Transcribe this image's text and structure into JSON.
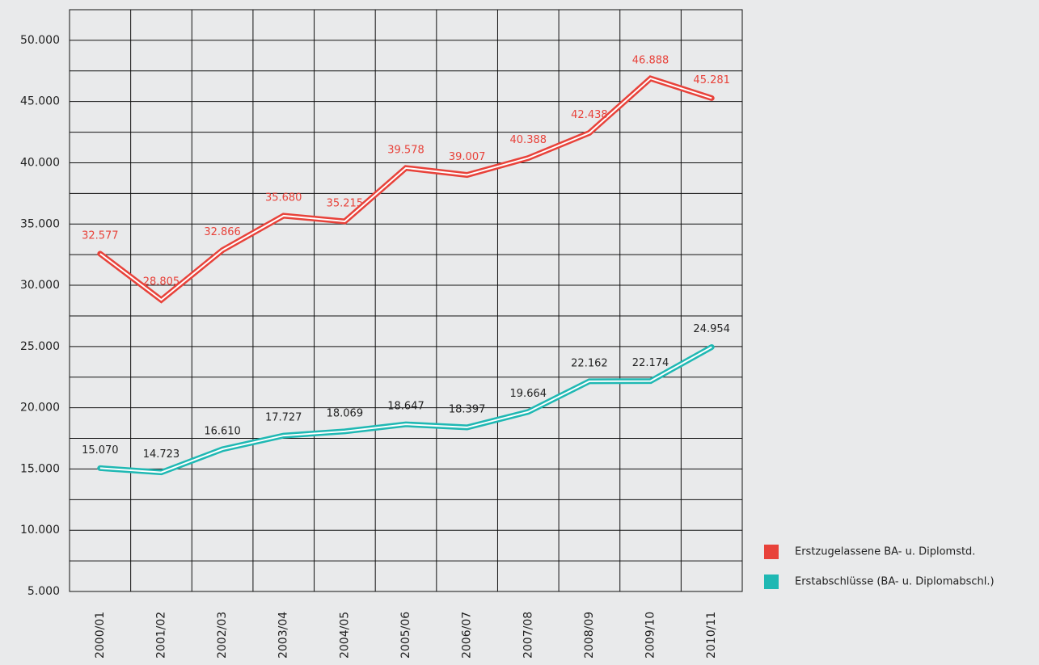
{
  "chart_data": {
    "type": "line",
    "categories": [
      "2000/01",
      "2001/02",
      "2002/03",
      "2003/04",
      "2004/05",
      "2005/06",
      "2006/07",
      "2007/08",
      "2008/09",
      "2009/10",
      "2010/11"
    ],
    "series": [
      {
        "name": "Erstzugelassene BA- u. Diplomstd.",
        "color": "#e8423a",
        "label_color": "#e8423a",
        "values": [
          32577,
          28805,
          32866,
          35680,
          35215,
          39578,
          39007,
          40388,
          42438,
          46888,
          45281
        ],
        "value_labels": [
          "32.577",
          "28.805",
          "32.866",
          "35.680",
          "35.215",
          "39.578",
          "39.007",
          "40.388",
          "42.438",
          "46.888",
          "45.281"
        ]
      },
      {
        "name": "Erstabschlüsse (BA- u. Diplomabschl.)",
        "color": "#1fb8b3",
        "label_color": "#222222",
        "values": [
          15070,
          14723,
          16610,
          17727,
          18069,
          18647,
          18397,
          19664,
          22162,
          22174,
          24954
        ],
        "value_labels": [
          "15.070",
          "14.723",
          "16.610",
          "17.727",
          "18.069",
          "18.647",
          "18.397",
          "19.664",
          "22.162",
          "22.174",
          "24.954"
        ]
      }
    ],
    "ylim": [
      5000,
      52500
    ],
    "yticks": [
      {
        "value": 5000,
        "label": "5.000"
      },
      {
        "value": 10000,
        "label": "10.000"
      },
      {
        "value": 15000,
        "label": "15.000"
      },
      {
        "value": 20000,
        "label": "20.000"
      },
      {
        "value": 25000,
        "label": "25.000"
      },
      {
        "value": 30000,
        "label": "30.000"
      },
      {
        "value": 35000,
        "label": "35.000"
      },
      {
        "value": 40000,
        "label": "40.000"
      },
      {
        "value": 45000,
        "label": "45.000"
      },
      {
        "value": 50000,
        "label": "50.000"
      }
    ],
    "grid": true,
    "legend": "lower right"
  }
}
